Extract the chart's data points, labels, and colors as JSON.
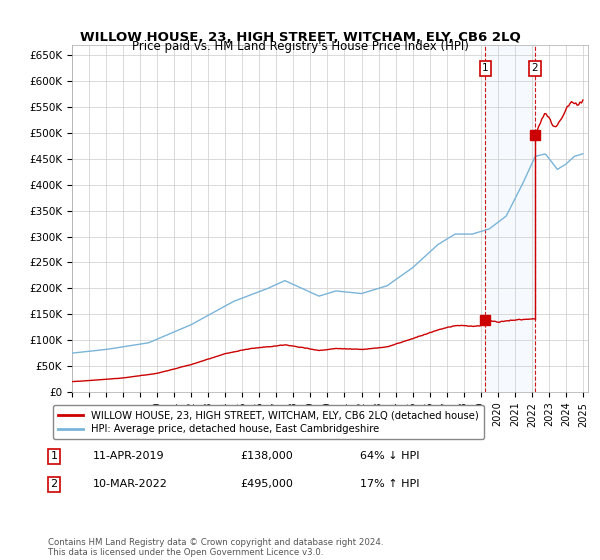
{
  "title": "WILLOW HOUSE, 23, HIGH STREET, WITCHAM, ELY, CB6 2LQ",
  "subtitle": "Price paid vs. HM Land Registry's House Price Index (HPI)",
  "title_fontsize": 10,
  "ylabel_ticks": [
    "£0",
    "£50K",
    "£100K",
    "£150K",
    "£200K",
    "£250K",
    "£300K",
    "£350K",
    "£400K",
    "£450K",
    "£500K",
    "£550K",
    "£600K",
    "£650K"
  ],
  "ytick_values": [
    0,
    50000,
    100000,
    150000,
    200000,
    250000,
    300000,
    350000,
    400000,
    450000,
    500000,
    550000,
    600000,
    650000
  ],
  "ylim": [
    0,
    670000
  ],
  "xlim_start": 1995.3,
  "xlim_end": 2025.3,
  "hpi_color": "#7ab4d8",
  "price_color": "#cc0000",
  "shade_color": "#ddeeff",
  "legend_house": "WILLOW HOUSE, 23, HIGH STREET, WITCHAM, ELY, CB6 2LQ (detached house)",
  "legend_hpi": "HPI: Average price, detached house, East Cambridgeshire",
  "point1_date": "11-APR-2019",
  "point1_price": "£138,000",
  "point1_hpi": "64% ↓ HPI",
  "point1_x": 2019.28,
  "point1_y": 138000,
  "point2_date": "10-MAR-2022",
  "point2_price": "£495,000",
  "point2_hpi": "17% ↑ HPI",
  "point2_x": 2022.19,
  "point2_y": 495000,
  "footnote": "Contains HM Land Registry data © Crown copyright and database right 2024.\nThis data is licensed under the Open Government Licence v3.0.",
  "xticks": [
    1995,
    1996,
    1997,
    1998,
    1999,
    2000,
    2001,
    2002,
    2003,
    2004,
    2005,
    2006,
    2007,
    2008,
    2009,
    2010,
    2011,
    2012,
    2013,
    2014,
    2015,
    2016,
    2017,
    2018,
    2019,
    2020,
    2021,
    2022,
    2023,
    2024,
    2025
  ]
}
